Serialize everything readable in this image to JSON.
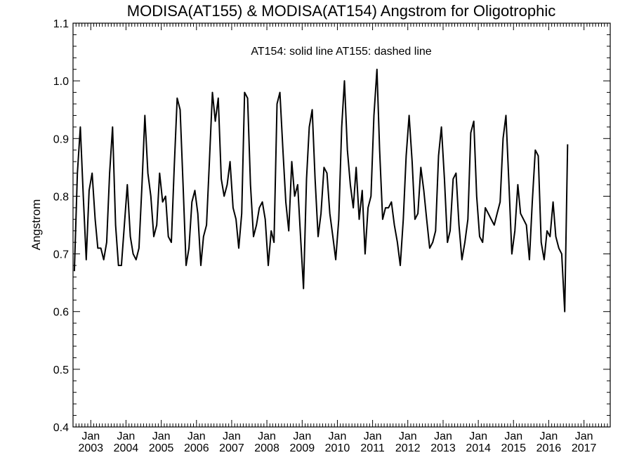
{
  "chart_data": {
    "type": "line",
    "title": "MODISA(AT155) & MODISA(AT154)  Angstrom for Oligotrophic",
    "ylabel": "Angstrom",
    "xlabel": "",
    "annotation": "AT154: solid line   AT155: dashed line",
    "ylim": [
      0.4,
      1.1
    ],
    "y_ticks": [
      0.4,
      0.5,
      0.6,
      0.7,
      0.8,
      0.9,
      1.0,
      1.1
    ],
    "y_tick_labels": [
      "0.4",
      "0.5",
      "0.6",
      "0.7",
      "0.8",
      "0.9",
      "1.0",
      "1.1"
    ],
    "xlim": [
      "2002-07-01",
      "2017-09-30"
    ],
    "x_tick_month_label": "Jan",
    "x_ticks": [
      {
        "date": "2003-01-01",
        "year": "2003"
      },
      {
        "date": "2004-01-01",
        "year": "2004"
      },
      {
        "date": "2005-01-01",
        "year": "2005"
      },
      {
        "date": "2006-01-01",
        "year": "2006"
      },
      {
        "date": "2007-01-01",
        "year": "2007"
      },
      {
        "date": "2008-01-01",
        "year": "2008"
      },
      {
        "date": "2009-01-01",
        "year": "2009"
      },
      {
        "date": "2010-01-01",
        "year": "2010"
      },
      {
        "date": "2011-01-01",
        "year": "2011"
      },
      {
        "date": "2012-01-01",
        "year": "2012"
      },
      {
        "date": "2013-01-01",
        "year": "2013"
      },
      {
        "date": "2014-01-01",
        "year": "2014"
      },
      {
        "date": "2015-01-01",
        "year": "2015"
      },
      {
        "date": "2016-01-01",
        "year": "2016"
      },
      {
        "date": "2017-01-01",
        "year": "2017"
      }
    ],
    "grid": false,
    "series": [
      {
        "name": "AT154",
        "style": "solid",
        "color": "#000000",
        "start": "2002-07",
        "interval": "monthly",
        "values": [
          0.67,
          0.84,
          0.92,
          0.8,
          0.69,
          0.81,
          0.84,
          0.76,
          0.71,
          0.71,
          0.69,
          0.72,
          0.84,
          0.92,
          0.75,
          0.68,
          0.68,
          0.75,
          0.82,
          0.73,
          0.7,
          0.69,
          0.71,
          0.82,
          0.94,
          0.84,
          0.8,
          0.73,
          0.75,
          0.84,
          0.79,
          0.8,
          0.73,
          0.72,
          0.85,
          0.97,
          0.95,
          0.82,
          0.68,
          0.71,
          0.79,
          0.81,
          0.77,
          0.68,
          0.73,
          0.75,
          0.86,
          0.98,
          0.93,
          0.97,
          0.83,
          0.8,
          0.82,
          0.86,
          0.78,
          0.76,
          0.71,
          0.77,
          0.98,
          0.97,
          0.82,
          0.73,
          0.75,
          0.78,
          0.79,
          0.76,
          0.68,
          0.74,
          0.72,
          0.96,
          0.98,
          0.88,
          0.79,
          0.74,
          0.86,
          0.8,
          0.82,
          0.73,
          0.64,
          0.83,
          0.92,
          0.95,
          0.83,
          0.73,
          0.77,
          0.85,
          0.84,
          0.77,
          0.73,
          0.69,
          0.76,
          0.92,
          1.0,
          0.88,
          0.82,
          0.78,
          0.85,
          0.76,
          0.81,
          0.7,
          0.78,
          0.8,
          0.94,
          1.02,
          0.88,
          0.76,
          0.78,
          0.78,
          0.79,
          0.75,
          0.72,
          0.68,
          0.76,
          0.87,
          0.94,
          0.86,
          0.76,
          0.77,
          0.85,
          0.81,
          0.76,
          0.71,
          0.72,
          0.74,
          0.87,
          0.92,
          0.83,
          0.72,
          0.74,
          0.83,
          0.84,
          0.75,
          0.69,
          0.72,
          0.76,
          0.91,
          0.93,
          0.8,
          0.73,
          0.72,
          0.78,
          0.77,
          0.76,
          0.75,
          0.77,
          0.79,
          0.9,
          0.94,
          0.82,
          0.7,
          0.74,
          0.82,
          0.77,
          0.76,
          0.75,
          0.69,
          0.79,
          0.88,
          0.87,
          0.72,
          0.69,
          0.74,
          0.73,
          0.79,
          0.73,
          0.71,
          0.7,
          0.6,
          0.89
        ]
      }
    ]
  }
}
